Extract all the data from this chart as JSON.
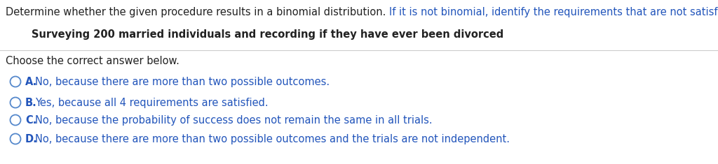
{
  "bg_color": "#ffffff",
  "line1_normal": "Determine whether the given procedure results in a binomial distribution. ",
  "line1_blue": "If it is not binomial, identify the requirements that are not satisfied.",
  "line2": "Surveying 200 married individuals and recording if they have ever been divorced",
  "line3": "Choose the correct answer below.",
  "options": [
    {
      "label": "A.",
      "text": "No, because there are more than two possible outcomes."
    },
    {
      "label": "B.",
      "text": "Yes, because all 4 requirements are satisfied."
    },
    {
      "label": "C.",
      "text": "No, because the probability of success does not remain the same in all trials."
    },
    {
      "label": "D.",
      "text": "No, because there are more than two possible outcomes and the trials are not independent."
    }
  ],
  "font_color_black": "#222222",
  "font_color_blue": "#2255bb",
  "font_size_main": 10.5,
  "circle_color": "#5588cc",
  "separator_color": "#cccccc",
  "fig_width": 10.24,
  "fig_height": 2.35,
  "dpi": 100
}
